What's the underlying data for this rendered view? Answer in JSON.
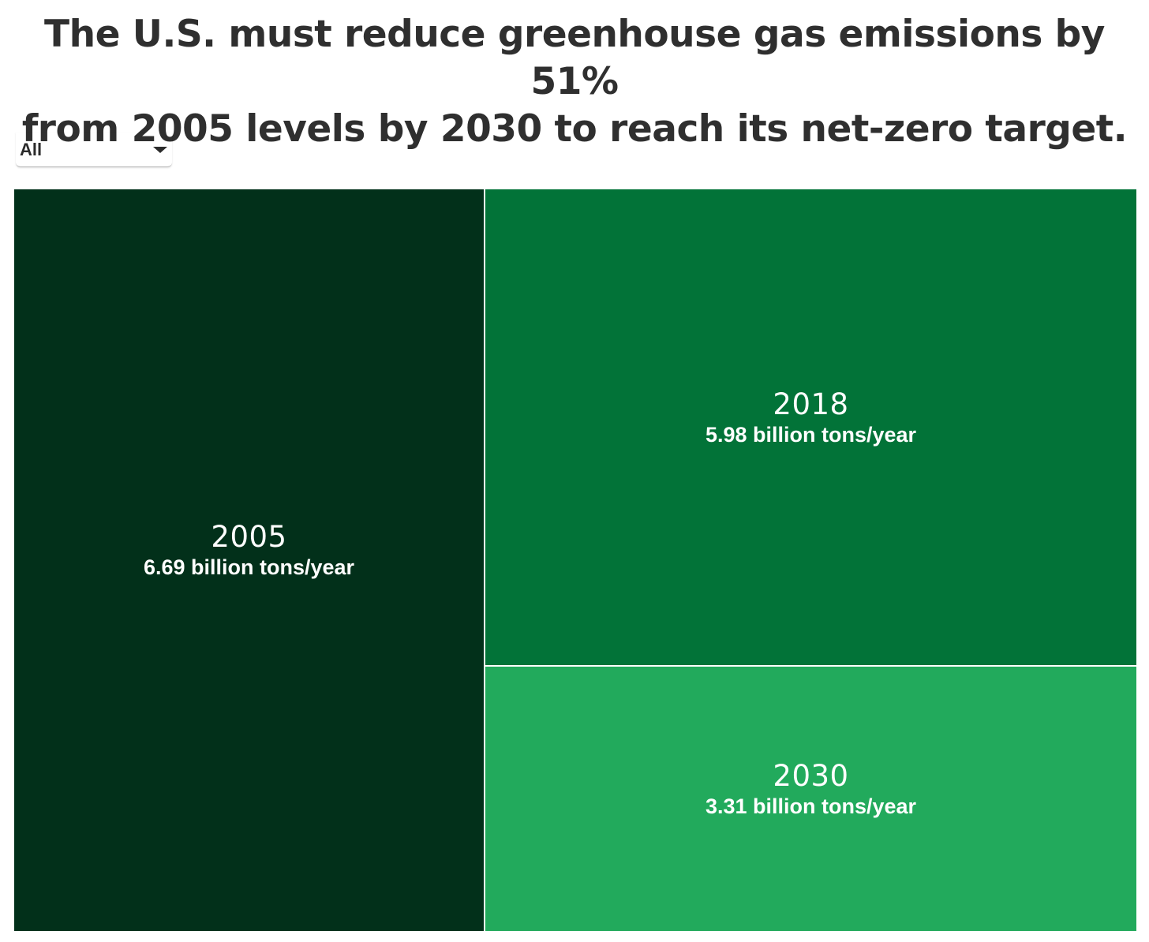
{
  "header": {
    "title_line1": "The U.S. must reduce greenhouse gas emissions by 51%",
    "title_line2": "from 2005 levels by 2030 to reach its net-zero target."
  },
  "filter": {
    "selected": "All"
  },
  "chart_data": {
    "type": "treemap",
    "title": "The U.S. must reduce greenhouse gas emissions by 51% from 2005 levels by 2030 to reach its net-zero target.",
    "unit": "billion tons/year",
    "items": [
      {
        "label": "2005",
        "value": 6.69,
        "value_text": "6.69 billion tons/year",
        "color": "#02301a"
      },
      {
        "label": "2018",
        "value": 5.98,
        "value_text": "5.98 billion tons/year",
        "color": "#027338"
      },
      {
        "label": "2030",
        "value": 3.31,
        "value_text": "3.31 billion tons/year",
        "color": "#22aa5c"
      }
    ]
  }
}
